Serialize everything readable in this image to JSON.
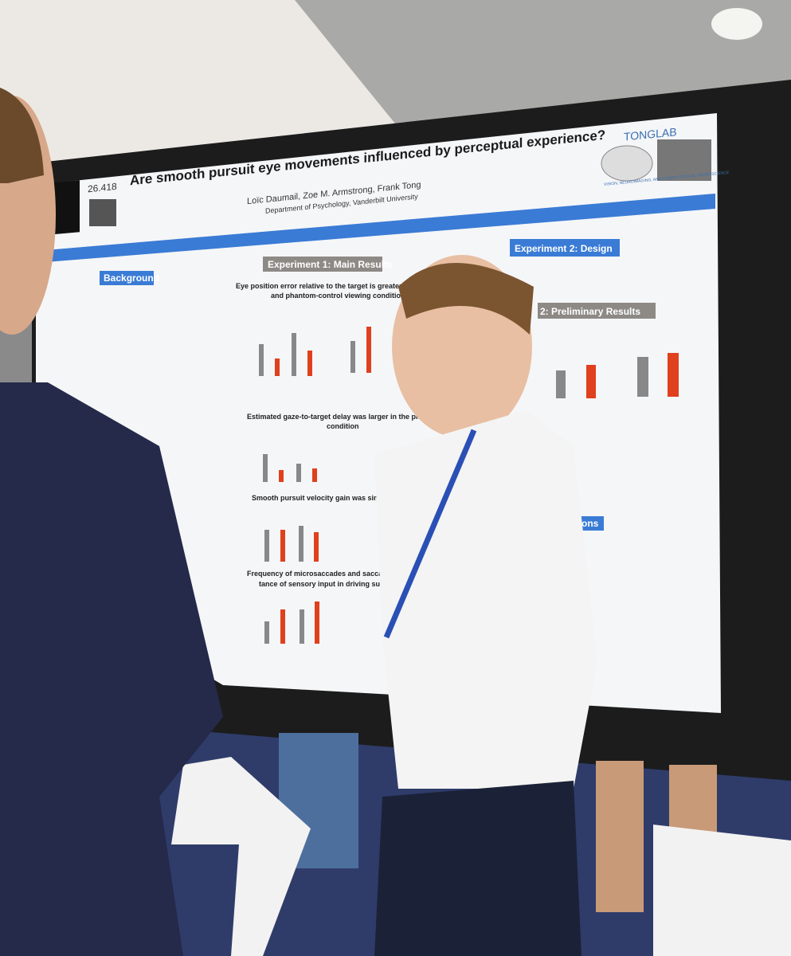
{
  "poster": {
    "id": "26.418",
    "title": "Are smooth pursuit eye movements influenced by perceptual experience?",
    "authors": "Loïc Daumail, Zoe M. Armstrong, Frank Tong",
    "affiliation": "Department of Psychology, Vanderbilt University",
    "lab": {
      "name": "TONGLAB",
      "tagline": "VISION, NEUROIMAGING, AND COMPUTATIONAL NEUROSCIENCE"
    },
    "sections": [
      "Background",
      "Experiment 1: Main Results",
      "Experiment 2: Design",
      "2: Preliminary Results",
      "sions"
    ],
    "findings": [
      "Eye position error relative to the target is greater for both phantom",
      "and phantom-control viewing conditions",
      "Estimated gaze-to-target delay was larger in the phantom control",
      "condition",
      "Smooth pursuit velocity gain was similar across conditions",
      "Frequency of microsaccades and saccades suggests the",
      "tance of sensory input in driving such eye movem"
    ]
  }
}
